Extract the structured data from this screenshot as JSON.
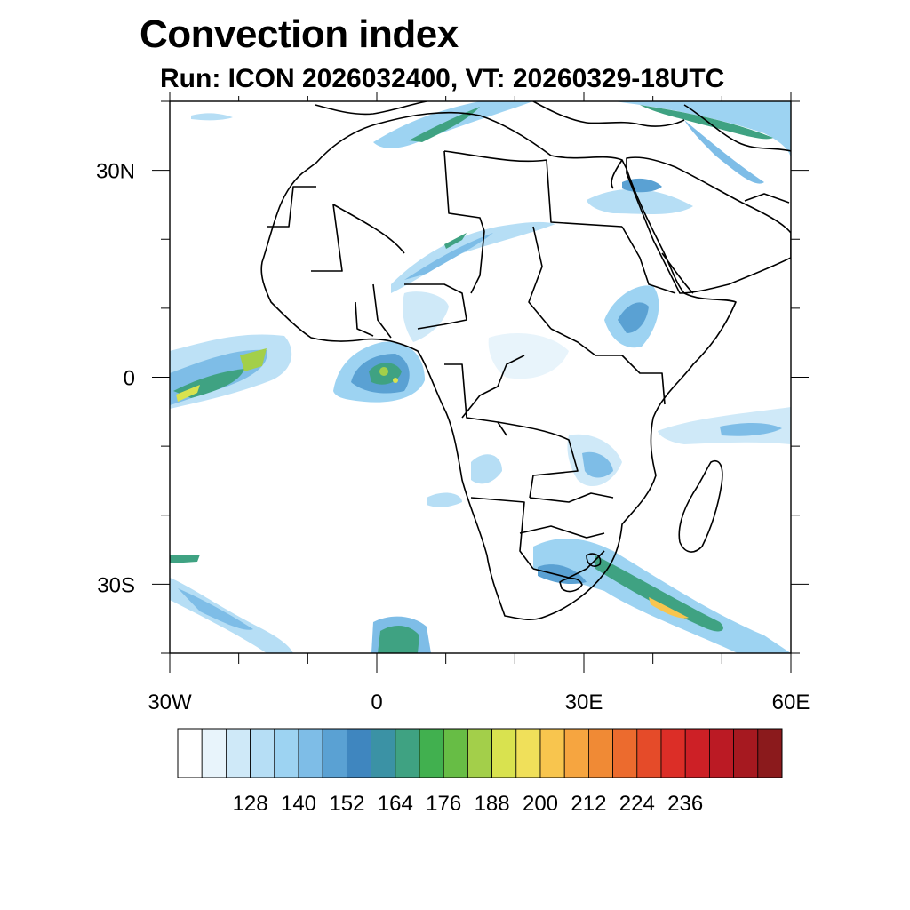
{
  "title": "Convection index",
  "subtitle": "Run: ICON 2026032400,  VT: 20260329-18UTC",
  "map": {
    "lon_range": [
      -30,
      60
    ],
    "lat_range": [
      -40,
      40
    ],
    "x_ticks": [
      {
        "value": -30,
        "label": "30W"
      },
      {
        "value": 0,
        "label": "0"
      },
      {
        "value": 30,
        "label": "30E"
      },
      {
        "value": 60,
        "label": "60E"
      }
    ],
    "y_ticks": [
      {
        "value": 30,
        "label": "30N"
      },
      {
        "value": 0,
        "label": "0"
      },
      {
        "value": -30,
        "label": "30S"
      }
    ]
  },
  "colorbar": {
    "colors": [
      "#ffffff",
      "#e8f4fb",
      "#cfe9f8",
      "#b6def5",
      "#9dd3f2",
      "#7ebde7",
      "#5aa1d3",
      "#3f86bf",
      "#3b92a5",
      "#3fa282",
      "#41b04f",
      "#67bd45",
      "#a3cf4a",
      "#d9e24f",
      "#f0e05a",
      "#f8c54e",
      "#f6a540",
      "#f08a35",
      "#ec6b2e",
      "#e54b29",
      "#dc2e27",
      "#cd2026",
      "#bb1a24",
      "#a61920",
      "#8b1a1c"
    ],
    "labels": [
      "128",
      "140",
      "152",
      "164",
      "176",
      "188",
      "200",
      "212",
      "224",
      "236"
    ]
  }
}
